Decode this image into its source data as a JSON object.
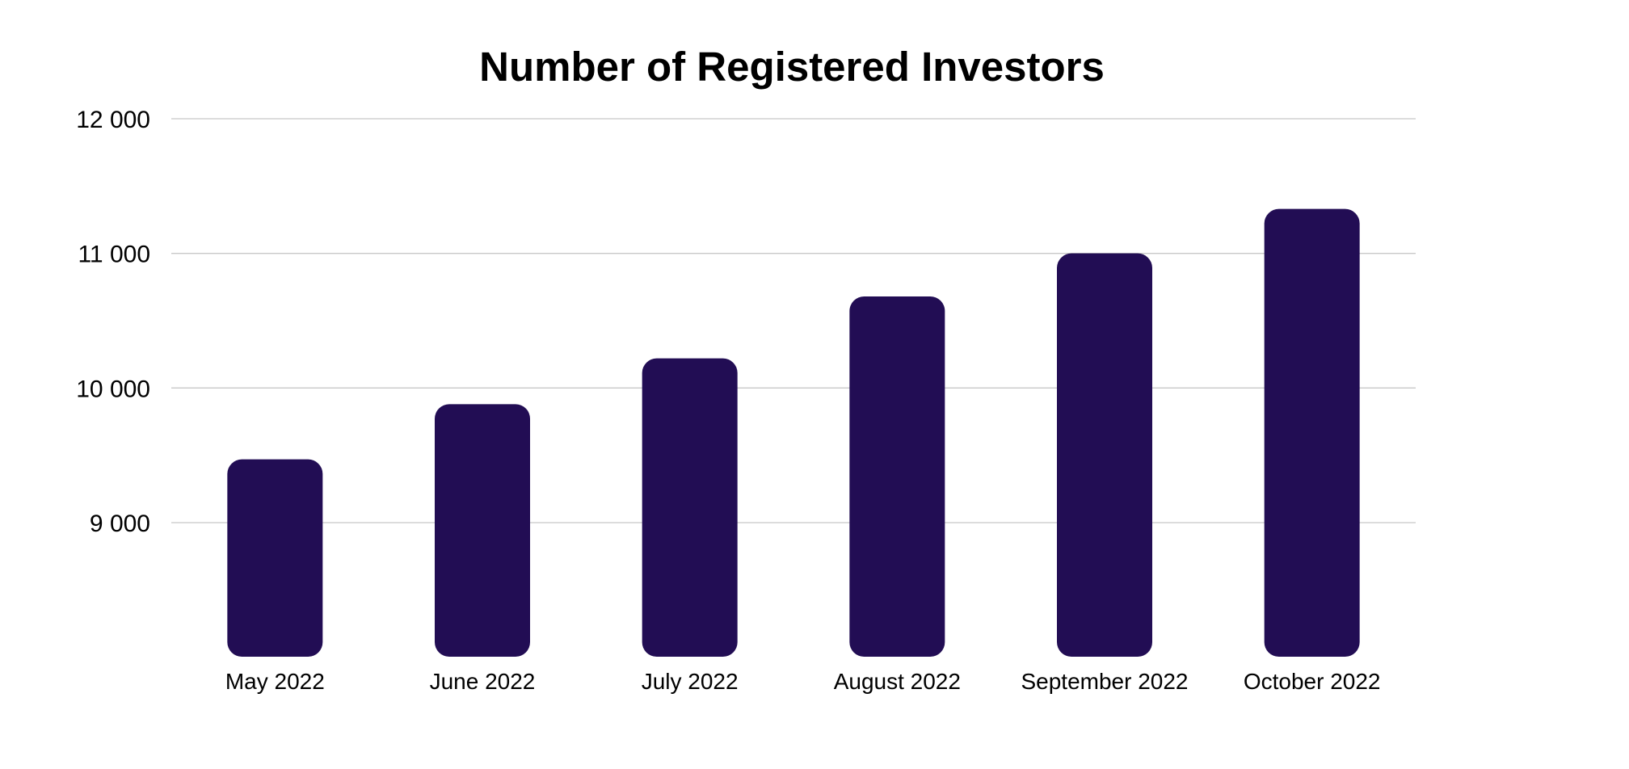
{
  "chart_data": {
    "type": "bar",
    "title": "Number of Registered Investors",
    "xlabel": "",
    "ylabel": "",
    "categories": [
      "May 2022",
      "June 2022",
      "July 2022",
      "August 2022",
      "September 2022",
      "October 2022"
    ],
    "values": [
      9470,
      9880,
      10220,
      10680,
      11000,
      11330
    ],
    "ylim": [
      8000,
      12000
    ],
    "yticks": [
      9000,
      10000,
      11000,
      12000
    ],
    "ytick_labels": [
      "9 000",
      "10 000",
      "11 000",
      "12 000"
    ],
    "grid": true,
    "legend": "none",
    "bar_color": "#220d54"
  }
}
